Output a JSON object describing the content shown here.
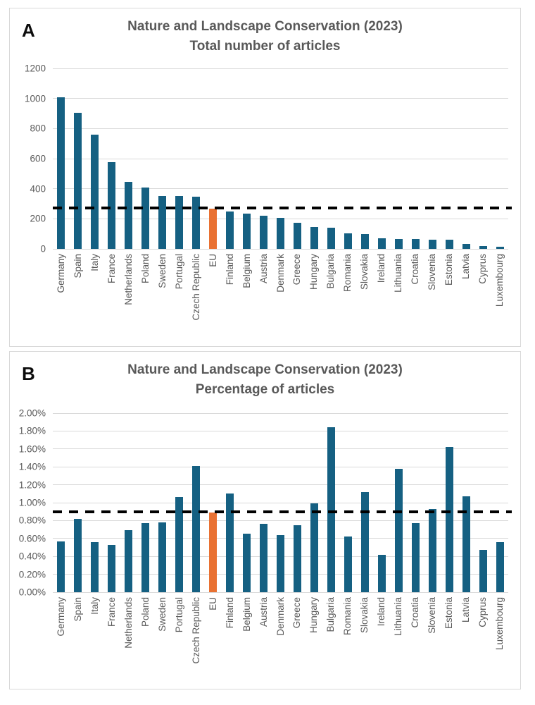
{
  "colors": {
    "bar": "#156082",
    "highlight_bar": "#E97132",
    "dashed_line": "#000000",
    "gridline": "#D9D9D9",
    "axis_text": "#595959",
    "title_text": "#595959",
    "panel_border": "#D9D9D9",
    "panel_label_text": "#0D0D0D"
  },
  "chart_data": [
    {
      "panel_label": "A",
      "type": "bar",
      "title": "Nature and Landscape Conservation (2023)",
      "subtitle": "Total number of articles",
      "grid": "horizontal",
      "legend": "none",
      "highlight_category": "EU",
      "dashed_line_value": 270,
      "ylim": [
        0,
        1200
      ],
      "yticks": [
        {
          "v": 0,
          "label": "0"
        },
        {
          "v": 200,
          "label": "200"
        },
        {
          "v": 400,
          "label": "400"
        },
        {
          "v": 600,
          "label": "600"
        },
        {
          "v": 800,
          "label": "800"
        },
        {
          "v": 1000,
          "label": "1000"
        },
        {
          "v": 1200,
          "label": "1200"
        }
      ],
      "categories": [
        "Germany",
        "Spain",
        "Italy",
        "France",
        "Netherlands",
        "Poland",
        "Sweden",
        "Portugal",
        "Czech Republic",
        "EU",
        "Finland",
        "Belgium",
        "Austria",
        "Denmark",
        "Greece",
        "Hungary",
        "Bulgaria",
        "Romania",
        "Slovakia",
        "Ireland",
        "Lithuania",
        "Croatia",
        "Slovenia",
        "Estonia",
        "Latvia",
        "Cyprus",
        "Luxembourg"
      ],
      "values": [
        1010,
        905,
        760,
        575,
        445,
        410,
        350,
        350,
        345,
        265,
        250,
        235,
        220,
        205,
        175,
        145,
        140,
        105,
        100,
        70,
        65,
        65,
        60,
        60,
        35,
        20,
        15
      ]
    },
    {
      "panel_label": "B",
      "type": "bar",
      "title": "Nature and Landscape Conservation (2023)",
      "subtitle": "Percentage of articles",
      "grid": "horizontal",
      "legend": "none",
      "highlight_category": "EU",
      "dashed_line_value": 0.9,
      "ylim": [
        0,
        2.0
      ],
      "yticks": [
        {
          "v": 0.0,
          "label": "0.00%"
        },
        {
          "v": 0.2,
          "label": "0.20%"
        },
        {
          "v": 0.4,
          "label": "0.40%"
        },
        {
          "v": 0.6,
          "label": "0.60%"
        },
        {
          "v": 0.8,
          "label": "0.80%"
        },
        {
          "v": 1.0,
          "label": "1.00%"
        },
        {
          "v": 1.2,
          "label": "1.20%"
        },
        {
          "v": 1.4,
          "label": "1.40%"
        },
        {
          "v": 1.6,
          "label": "1.60%"
        },
        {
          "v": 1.8,
          "label": "1.80%"
        },
        {
          "v": 2.0,
          "label": "2.00%"
        }
      ],
      "categories": [
        "Germany",
        "Spain",
        "Italy",
        "France",
        "Netherlands",
        "Poland",
        "Sweden",
        "Portugal",
        "Czech Republic",
        "EU",
        "Finland",
        "Belgium",
        "Austria",
        "Denmark",
        "Greece",
        "Hungary",
        "Bulgaria",
        "Romania",
        "Slovakia",
        "Ireland",
        "Lithuania",
        "Croatia",
        "Slovenia",
        "Estonia",
        "Latvia",
        "Cyprus",
        "Luxembourg"
      ],
      "values": [
        0.57,
        0.82,
        0.56,
        0.53,
        0.69,
        0.77,
        0.78,
        1.06,
        1.41,
        0.89,
        1.1,
        0.65,
        0.76,
        0.64,
        0.75,
        0.99,
        1.84,
        0.62,
        1.12,
        0.42,
        1.38,
        0.77,
        0.93,
        1.62,
        1.07,
        0.47,
        0.56
      ]
    }
  ]
}
